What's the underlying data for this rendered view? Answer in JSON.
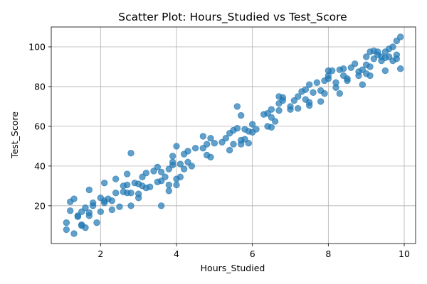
{
  "chart_data": {
    "type": "scatter",
    "title": "Scatter Plot: Hours_Studied vs Test_Score",
    "xlabel": "Hours_Studied",
    "ylabel": "Test_Score",
    "xlim": [
      0.7,
      10.3
    ],
    "ylim": [
      1.0,
      110.0
    ],
    "xticks": [
      2,
      4,
      6,
      8,
      10
    ],
    "yticks": [
      20,
      40,
      60,
      80,
      100
    ],
    "grid": true,
    "point_color": "#1f77b4",
    "point_alpha": 0.7,
    "series": [
      {
        "points": [
          [
            1.1,
            8.0
          ],
          [
            1.1,
            11.5
          ],
          [
            1.2,
            22.0
          ],
          [
            1.2,
            17.5
          ],
          [
            1.3,
            6.0
          ],
          [
            1.3,
            23.5
          ],
          [
            1.4,
            14.5
          ],
          [
            1.4,
            15.0
          ],
          [
            1.5,
            10.5
          ],
          [
            1.5,
            17.0
          ],
          [
            1.5,
            10.0
          ],
          [
            1.6,
            9.0
          ],
          [
            1.6,
            19.0
          ],
          [
            1.7,
            15.0
          ],
          [
            1.7,
            28.0
          ],
          [
            1.7,
            16.5
          ],
          [
            1.8,
            21.5
          ],
          [
            1.8,
            20.0
          ],
          [
            1.9,
            11.5
          ],
          [
            2.0,
            24.0
          ],
          [
            2.0,
            17.0
          ],
          [
            2.1,
            22.5
          ],
          [
            2.1,
            31.5
          ],
          [
            2.1,
            21.5
          ],
          [
            2.2,
            23.5
          ],
          [
            2.3,
            18.0
          ],
          [
            2.3,
            22.5
          ],
          [
            2.4,
            26.5
          ],
          [
            2.4,
            33.5
          ],
          [
            2.5,
            19.5
          ],
          [
            2.6,
            27.0
          ],
          [
            2.6,
            30.0
          ],
          [
            2.7,
            30.5
          ],
          [
            2.7,
            36.0
          ],
          [
            2.7,
            26.5
          ],
          [
            2.8,
            20.0
          ],
          [
            2.8,
            26.5
          ],
          [
            2.8,
            46.5
          ],
          [
            2.9,
            31.5
          ],
          [
            3.0,
            24.0
          ],
          [
            3.0,
            26.0
          ],
          [
            3.0,
            31.0
          ],
          [
            3.1,
            30.0
          ],
          [
            3.1,
            34.5
          ],
          [
            3.2,
            36.5
          ],
          [
            3.2,
            29.0
          ],
          [
            3.3,
            29.5
          ],
          [
            3.4,
            37.5
          ],
          [
            3.5,
            32.0
          ],
          [
            3.5,
            39.5
          ],
          [
            3.6,
            20.0
          ],
          [
            3.6,
            32.5
          ],
          [
            3.6,
            37.0
          ],
          [
            3.7,
            34.5
          ],
          [
            3.8,
            27.5
          ],
          [
            3.8,
            30.5
          ],
          [
            3.8,
            38.5
          ],
          [
            3.9,
            40.5
          ],
          [
            3.9,
            42.0
          ],
          [
            3.9,
            45.0
          ],
          [
            4.0,
            50.0
          ],
          [
            4.0,
            33.5
          ],
          [
            4.0,
            30.5
          ],
          [
            4.1,
            34.5
          ],
          [
            4.1,
            41.0
          ],
          [
            4.2,
            38.5
          ],
          [
            4.2,
            46.0
          ],
          [
            4.3,
            47.5
          ],
          [
            4.3,
            42.0
          ],
          [
            4.4,
            40.0
          ],
          [
            4.5,
            49.0
          ],
          [
            4.7,
            55.0
          ],
          [
            4.7,
            49.0
          ],
          [
            4.8,
            51.0
          ],
          [
            4.8,
            45.5
          ],
          [
            4.9,
            44.5
          ],
          [
            4.9,
            54.0
          ],
          [
            5.0,
            51.5
          ],
          [
            5.2,
            52.0
          ],
          [
            5.3,
            54.0
          ],
          [
            5.4,
            56.5
          ],
          [
            5.4,
            48.0
          ],
          [
            5.5,
            51.0
          ],
          [
            5.5,
            58.0
          ],
          [
            5.6,
            70.0
          ],
          [
            5.6,
            59.0
          ],
          [
            5.7,
            65.5
          ],
          [
            5.7,
            53.0
          ],
          [
            5.7,
            51.0
          ],
          [
            5.8,
            58.5
          ],
          [
            5.8,
            53.5
          ],
          [
            5.9,
            51.5
          ],
          [
            5.9,
            57.5
          ],
          [
            6.0,
            61.0
          ],
          [
            6.0,
            57.0
          ],
          [
            6.1,
            58.5
          ],
          [
            6.3,
            66.0
          ],
          [
            6.4,
            66.5
          ],
          [
            6.4,
            60.0
          ],
          [
            6.5,
            59.5
          ],
          [
            6.5,
            68.5
          ],
          [
            6.5,
            64.5
          ],
          [
            6.6,
            62.5
          ],
          [
            6.7,
            68.0
          ],
          [
            6.7,
            71.5
          ],
          [
            6.7,
            75.0
          ],
          [
            6.8,
            73.0
          ],
          [
            6.8,
            74.5
          ],
          [
            7.0,
            70.0
          ],
          [
            7.0,
            68.5
          ],
          [
            7.1,
            73.0
          ],
          [
            7.2,
            69.0
          ],
          [
            7.2,
            75.0
          ],
          [
            7.3,
            77.5
          ],
          [
            7.4,
            78.5
          ],
          [
            7.4,
            73.5
          ],
          [
            7.5,
            72.0
          ],
          [
            7.5,
            70.5
          ],
          [
            7.5,
            81.0
          ],
          [
            7.6,
            77.0
          ],
          [
            7.7,
            82.0
          ],
          [
            7.8,
            72.5
          ],
          [
            7.8,
            78.0
          ],
          [
            7.9,
            76.5
          ],
          [
            7.9,
            83.0
          ],
          [
            8.0,
            84.0
          ],
          [
            8.0,
            85.5
          ],
          [
            8.0,
            88.0
          ],
          [
            8.1,
            88.0
          ],
          [
            8.2,
            79.5
          ],
          [
            8.2,
            82.0
          ],
          [
            8.3,
            76.5
          ],
          [
            8.3,
            88.5
          ],
          [
            8.4,
            89.0
          ],
          [
            8.4,
            85.5
          ],
          [
            8.5,
            83.0
          ],
          [
            8.5,
            84.0
          ],
          [
            8.6,
            89.5
          ],
          [
            8.7,
            91.5
          ],
          [
            8.8,
            85.5
          ],
          [
            8.8,
            87.5
          ],
          [
            8.9,
            88.5
          ],
          [
            8.9,
            81.0
          ],
          [
            9.0,
            91.0
          ],
          [
            9.0,
            86.5
          ],
          [
            9.0,
            95.0
          ],
          [
            9.1,
            85.5
          ],
          [
            9.1,
            90.0
          ],
          [
            9.1,
            97.5
          ],
          [
            9.2,
            94.0
          ],
          [
            9.2,
            98.0
          ],
          [
            9.3,
            97.5
          ],
          [
            9.3,
            96.0
          ],
          [
            9.4,
            93.0
          ],
          [
            9.4,
            95.0
          ],
          [
            9.5,
            88.0
          ],
          [
            9.5,
            94.5
          ],
          [
            9.5,
            97.5
          ],
          [
            9.6,
            99.0
          ],
          [
            9.6,
            95.0
          ],
          [
            9.7,
            93.0
          ],
          [
            9.7,
            100.0
          ],
          [
            9.8,
            103.0
          ],
          [
            9.8,
            96.0
          ],
          [
            9.8,
            94.0
          ],
          [
            9.9,
            105.0
          ],
          [
            9.9,
            89.0
          ]
        ]
      }
    ]
  }
}
